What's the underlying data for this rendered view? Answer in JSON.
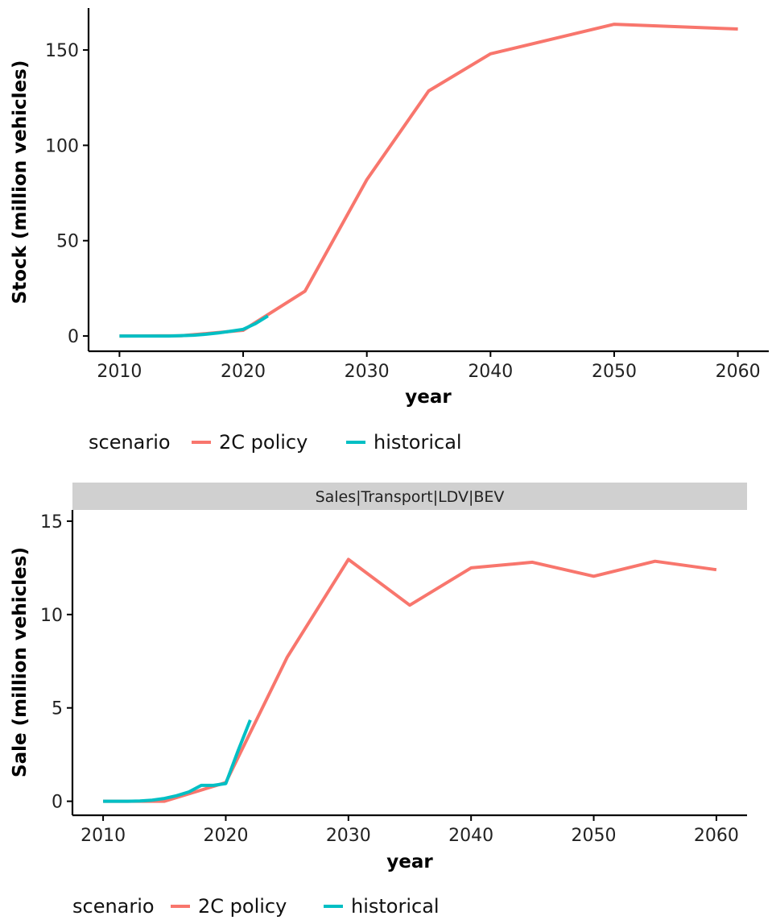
{
  "colors": {
    "2C policy": "#F8766D",
    "historical": "#00BFC4"
  },
  "chart_data": [
    {
      "type": "line",
      "title": "",
      "xlabel": "year",
      "ylabel": "Stock (million vehicles)",
      "xlim": [
        2007.5,
        2062.5
      ],
      "ylim": [
        -8,
        172
      ],
      "xticks": [
        2010,
        2020,
        2030,
        2040,
        2050,
        2060
      ],
      "yticks": [
        0,
        50,
        100,
        150
      ],
      "legend": {
        "title": "scenario",
        "position": "bottom"
      },
      "series": [
        {
          "name": "2C policy",
          "x": [
            2010,
            2015,
            2020,
            2025,
            2030,
            2035,
            2040,
            2050,
            2060
          ],
          "y": [
            0,
            0.1,
            3,
            23.5,
            82,
            128.5,
            148,
            163.5,
            161
          ]
        },
        {
          "name": "historical",
          "x": [
            2010,
            2011,
            2012,
            2013,
            2014,
            2015,
            2016,
            2017,
            2018,
            2019,
            2020,
            2021,
            2022
          ],
          "y": [
            0,
            0,
            0,
            0,
            0,
            0.2,
            0.4,
            0.9,
            1.6,
            2.5,
            3.5,
            6.5,
            10.5
          ]
        }
      ]
    },
    {
      "type": "line",
      "title": "Sales|Transport|LDV|BEV",
      "xlabel": "year",
      "ylabel": "Sale (million vehicles)",
      "xlim": [
        2007.5,
        2062.5
      ],
      "ylim": [
        -0.75,
        15.6
      ],
      "xticks": [
        2010,
        2020,
        2030,
        2040,
        2050,
        2060
      ],
      "yticks": [
        0,
        5,
        10,
        15
      ],
      "legend": {
        "title": "scenario",
        "position": "bottom"
      },
      "series": [
        {
          "name": "2C policy",
          "x": [
            2010,
            2015,
            2020,
            2025,
            2030,
            2035,
            2040,
            2045,
            2050,
            2055,
            2060
          ],
          "y": [
            0,
            0,
            1,
            7.7,
            12.95,
            10.5,
            12.5,
            12.8,
            12.05,
            12.85,
            12.4
          ]
        },
        {
          "name": "historical",
          "x": [
            2010,
            2011,
            2012,
            2013,
            2014,
            2015,
            2016,
            2017,
            2018,
            2019,
            2020,
            2021,
            2022
          ],
          "y": [
            0,
            0,
            0,
            0.02,
            0.06,
            0.15,
            0.3,
            0.5,
            0.85,
            0.85,
            0.95,
            2.7,
            4.35
          ]
        }
      ]
    }
  ]
}
